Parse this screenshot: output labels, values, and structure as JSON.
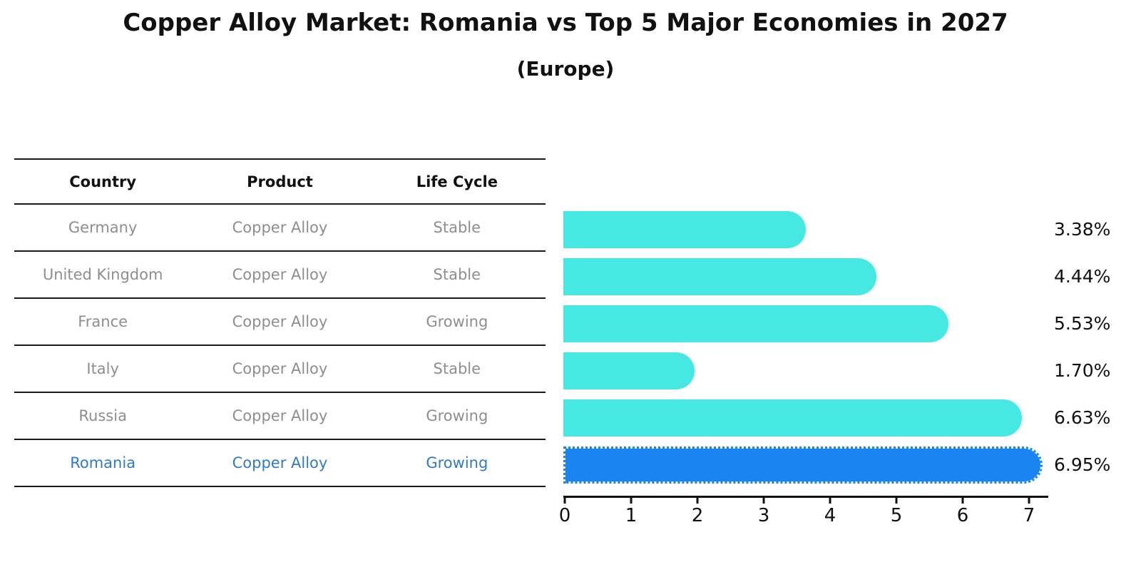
{
  "header": {
    "title": "Copper Alloy Market: Romania vs Top 5 Major Economies in 2027",
    "subtitle": "(Europe)"
  },
  "table": {
    "columns": [
      "Country",
      "Product",
      "Life Cycle"
    ],
    "rows": [
      {
        "country": "Germany",
        "product": "Copper Alloy",
        "life_cycle": "Stable"
      },
      {
        "country": "United Kingdom",
        "product": "Copper Alloy",
        "life_cycle": "Stable"
      },
      {
        "country": "France",
        "product": "Copper Alloy",
        "life_cycle": "Growing"
      },
      {
        "country": "Italy",
        "product": "Copper Alloy",
        "life_cycle": "Stable"
      },
      {
        "country": "Russia",
        "product": "Copper Alloy",
        "life_cycle": "Growing"
      },
      {
        "country": "Romania",
        "product": "Copper Alloy",
        "life_cycle": "Growing"
      }
    ],
    "highlight_row": 5,
    "text_color": "#8e8e8e",
    "highlight_text_color": "#2F7BC8"
  },
  "chart_data": {
    "type": "bar",
    "orientation": "horizontal",
    "title": "Copper Alloy Market: Romania vs Top 5 Major Economies in 2027 (Europe)",
    "categories": [
      "Germany",
      "United Kingdom",
      "France",
      "Italy",
      "Russia",
      "Romania"
    ],
    "values": [
      3.38,
      4.44,
      5.53,
      1.7,
      6.63,
      6.95
    ],
    "value_labels": [
      "3.38%",
      "4.44%",
      "5.53%",
      "1.70%",
      "6.63%",
      "6.95%"
    ],
    "unit_suffix": "%",
    "x_ticks": [
      "0",
      "1",
      "2",
      "3",
      "4",
      "5",
      "6",
      "7"
    ],
    "xlim": [
      0,
      7.3
    ],
    "grid": false,
    "legend": "none",
    "bar_color": "#45E9E2",
    "highlight_color": "#1A84F0",
    "highlight_index": 5
  }
}
